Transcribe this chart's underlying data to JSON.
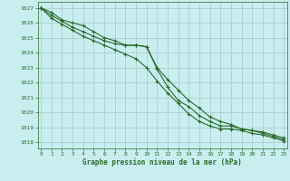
{
  "title": "Graphe pression niveau de la mer (hPa)",
  "background_color": "#c8eef0",
  "grid_color": "#a8c8c8",
  "line_color": "#2a6b2a",
  "spine_color": "#2a6b2a",
  "x_ticks": [
    0,
    1,
    2,
    3,
    4,
    5,
    6,
    7,
    8,
    9,
    10,
    11,
    12,
    13,
    14,
    15,
    16,
    17,
    18,
    19,
    20,
    21,
    22,
    23
  ],
  "y_ticks": [
    1018,
    1019,
    1020,
    1021,
    1022,
    1023,
    1024,
    1025,
    1026,
    1027
  ],
  "ylim": [
    1017.6,
    1027.4
  ],
  "xlim": [
    -0.3,
    23.3
  ],
  "series1": [
    1027.0,
    1026.7,
    1026.2,
    1026.0,
    1025.8,
    1025.4,
    1025.0,
    1024.8,
    1024.5,
    1024.5,
    1024.4,
    1023.0,
    1022.2,
    1021.5,
    1020.8,
    1020.3,
    1019.7,
    1019.4,
    1019.2,
    1018.9,
    1018.8,
    1018.7,
    1018.5,
    1018.3
  ],
  "series2": [
    1027.0,
    1026.5,
    1026.1,
    1025.7,
    1025.4,
    1025.1,
    1024.8,
    1024.6,
    1024.5,
    1024.5,
    1024.4,
    1022.9,
    1021.7,
    1020.8,
    1020.4,
    1019.8,
    1019.4,
    1019.1,
    1019.1,
    1018.9,
    1018.8,
    1018.6,
    1018.4,
    1018.2
  ],
  "series3": [
    1027.0,
    1026.3,
    1025.9,
    1025.5,
    1025.1,
    1024.8,
    1024.5,
    1024.2,
    1023.9,
    1023.6,
    1023.0,
    1022.1,
    1021.3,
    1020.6,
    1019.9,
    1019.4,
    1019.1,
    1018.9,
    1018.9,
    1018.8,
    1018.6,
    1018.5,
    1018.3,
    1018.1
  ]
}
